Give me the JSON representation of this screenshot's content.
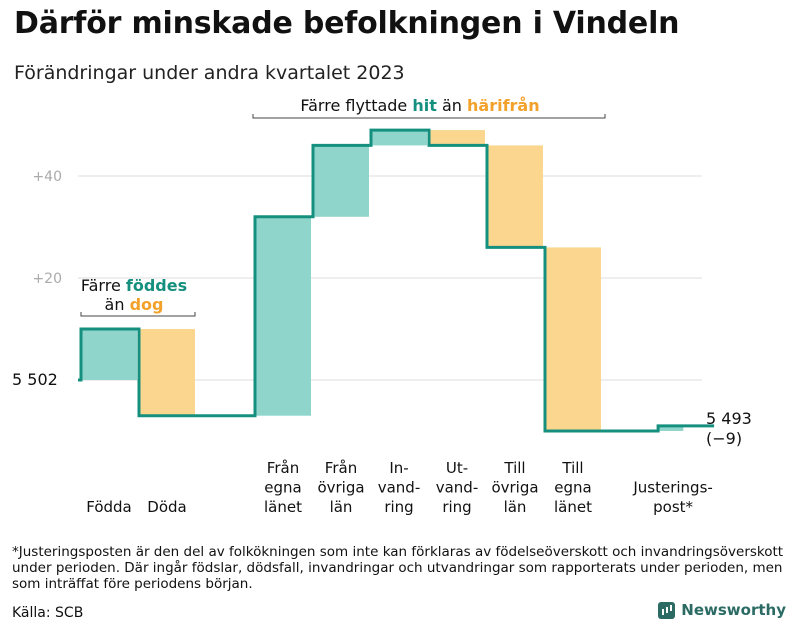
{
  "title": "Därför minskade befolkningen i Vindeln",
  "subtitle": "Förändringar under andra kvartalet 2023",
  "footnote": "*Justeringsposten är den del av folkökningen som inte kan förklaras av födelseöverskott och invandringsöverskott under perioden. Där ingår födslar, dödsfall, invandringar och utvandringar som rapporterats under perioden, men som inträffat före periodens början.",
  "source": "Källa: SCB",
  "brand": {
    "name": "Newsworthy",
    "icon": "bar-chart-icon"
  },
  "colors": {
    "increase": "#8fd5cc",
    "decrease": "#fbd68e",
    "line": "#15907f",
    "hit": "#15907f",
    "harifran": "#f2a12b",
    "grid": "#dddddd",
    "tick": "#aaaaaa"
  },
  "chart_data": {
    "type": "waterfall",
    "baseline": 5502,
    "baseline_label": "5 502",
    "end_value": 5493,
    "end_label": "5 493",
    "end_change_label": "(−9)",
    "y_ticks": [
      {
        "value": 40,
        "label": "+40"
      },
      {
        "value": 20,
        "label": "+20"
      }
    ],
    "ylim": [
      -15,
      52
    ],
    "steps": [
      {
        "key": "fodda",
        "label": [
          "Födda"
        ],
        "change": 10
      },
      {
        "key": "doda",
        "label": [
          "Döda"
        ],
        "change": -17
      },
      {
        "key": "fran-egna-lanet",
        "label": [
          "Från",
          "egna",
          "länet"
        ],
        "change": 39
      },
      {
        "key": "fran-ovriga-lan",
        "label": [
          "Från",
          "övriga",
          "län"
        ],
        "change": 14
      },
      {
        "key": "invandring",
        "label": [
          "In-",
          "vand-",
          "ring"
        ],
        "change": 3
      },
      {
        "key": "utvandring",
        "label": [
          "Ut-",
          "vand-",
          "ring"
        ],
        "change": -3
      },
      {
        "key": "till-ovriga-lan",
        "label": [
          "Till",
          "övriga",
          "län"
        ],
        "change": -20
      },
      {
        "key": "till-egna-lanet",
        "label": [
          "Till",
          "egna",
          "länet"
        ],
        "change": -36
      },
      {
        "key": "justeringspost",
        "label": [
          "Justerings-",
          "post*"
        ],
        "change": 1
      }
    ],
    "annotations": [
      {
        "key": "births",
        "lines": [
          [
            {
              "text": "Färre ",
              "tone": "plain"
            },
            {
              "text": "föddes",
              "tone": "hit"
            }
          ],
          [
            {
              "text": "än ",
              "tone": "plain"
            },
            {
              "text": "dog",
              "tone": "harifran"
            }
          ]
        ]
      },
      {
        "key": "migration",
        "lines": [
          [
            {
              "text": "Färre flyttade ",
              "tone": "plain"
            },
            {
              "text": "hit",
              "tone": "hit"
            },
            {
              "text": " än ",
              "tone": "plain"
            },
            {
              "text": "härifrån",
              "tone": "harifran"
            }
          ]
        ]
      }
    ]
  }
}
